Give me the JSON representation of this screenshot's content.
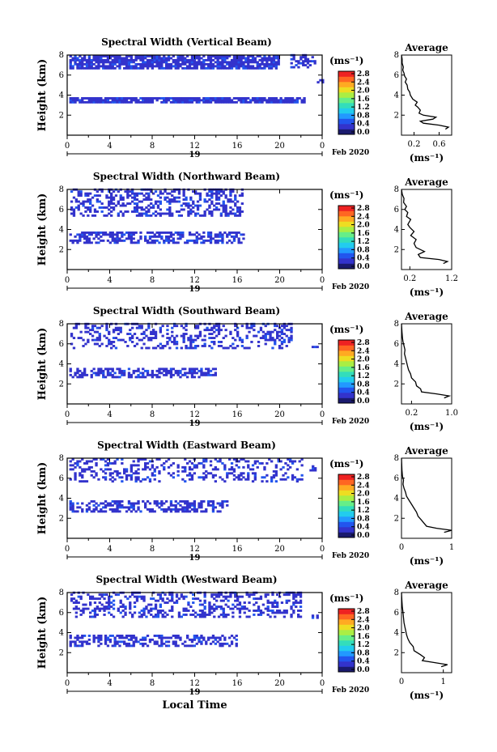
{
  "chart_data": [
    {
      "type": "heatmap",
      "title": "Spectral Width (Vertical Beam)",
      "ylabel": "Height (km)",
      "xlim": [
        0,
        24
      ],
      "ylim": [
        0,
        8
      ],
      "x_ticks": [
        "0",
        "4",
        "8",
        "12",
        "16",
        "20",
        "0"
      ],
      "y_ticks": [
        "2",
        "4",
        "6",
        "8"
      ],
      "date_day": "19",
      "date_month": "Feb 2020",
      "colorbar_unit": "(ms⁻¹)",
      "colorbar_ticks": [
        "0.0",
        "0.4",
        "0.8",
        "1.2",
        "1.6",
        "2.0",
        "2.4",
        "2.8"
      ],
      "average_title": "Average",
      "average_unit": "(ms⁻¹)",
      "average_xlim": [
        0,
        0.8
      ],
      "average_ticks": [
        "0.2",
        "0.6"
      ],
      "average_tick_values": [
        0.2,
        0.6
      ],
      "average_profile": [
        [
          0.7,
          0.6
        ],
        [
          0.75,
          0.8
        ],
        [
          0.6,
          1.0
        ],
        [
          0.35,
          1.2
        ],
        [
          0.3,
          1.4
        ],
        [
          0.5,
          1.6
        ],
        [
          0.55,
          1.8
        ],
        [
          0.35,
          2.0
        ],
        [
          0.28,
          2.2
        ],
        [
          0.3,
          2.5
        ],
        [
          0.26,
          2.8
        ],
        [
          0.22,
          3.0
        ],
        [
          0.25,
          3.3
        ],
        [
          0.18,
          3.6
        ],
        [
          0.14,
          4.0
        ],
        [
          0.13,
          4.3
        ],
        [
          0.1,
          4.6
        ],
        [
          0.09,
          5.0
        ],
        [
          0.06,
          5.3
        ],
        [
          0.08,
          5.6
        ],
        [
          0.05,
          5.9
        ],
        [
          0.04,
          6.2
        ],
        [
          0.02,
          6.5
        ],
        [
          0.03,
          6.8
        ],
        [
          0.01,
          7.2
        ],
        [
          0.01,
          7.6
        ],
        [
          0,
          8
        ]
      ],
      "mask": [
        [
          0.2,
          1.0,
          0.2,
          24,
          0.95
        ],
        [
          0.2,
          1.8,
          1.2,
          23.5,
          0.85
        ],
        [
          0.2,
          3.2,
          3.8,
          22.2,
          0.85
        ],
        [
          0.2,
          6.6,
          8.0,
          20.0,
          0.8
        ],
        [
          21.0,
          6.7,
          8.0,
          23.2,
          0.5
        ],
        [
          23.5,
          5.2,
          5.6,
          24,
          0.6
        ]
      ]
    },
    {
      "type": "heatmap",
      "title": "Spectral Width (Northward Beam)",
      "ylabel": "Height (km)",
      "xlim": [
        0,
        24
      ],
      "ylim": [
        0,
        8
      ],
      "x_ticks": [
        "0",
        "4",
        "8",
        "12",
        "16",
        "20",
        "0"
      ],
      "y_ticks": [
        "2",
        "4",
        "6",
        "8"
      ],
      "date_day": "19",
      "date_month": "Feb 2020",
      "colorbar_unit": "(ms⁻¹)",
      "colorbar_ticks": [
        "0.0",
        "0.4",
        "0.8",
        "1.2",
        "1.6",
        "2.0",
        "2.4",
        "2.8"
      ],
      "average_title": "Average",
      "average_unit": "(ms⁻¹)",
      "average_xlim": [
        0,
        1.2
      ],
      "average_ticks": [
        "0.2",
        "1.2"
      ],
      "average_tick_values": [
        0.2,
        1.2
      ],
      "average_profile": [
        [
          1.0,
          0.6
        ],
        [
          1.1,
          0.8
        ],
        [
          0.9,
          1.0
        ],
        [
          0.45,
          1.2
        ],
        [
          0.4,
          1.5
        ],
        [
          0.55,
          1.8
        ],
        [
          0.35,
          2.2
        ],
        [
          0.3,
          2.6
        ],
        [
          0.35,
          3.0
        ],
        [
          0.22,
          3.4
        ],
        [
          0.3,
          3.8
        ],
        [
          0.2,
          4.2
        ],
        [
          0.15,
          4.5
        ],
        [
          0.22,
          5.0
        ],
        [
          0.12,
          5.3
        ],
        [
          0.15,
          5.7
        ],
        [
          0.08,
          6.0
        ],
        [
          0.12,
          6.3
        ],
        [
          0.05,
          6.7
        ],
        [
          0.06,
          7.1
        ],
        [
          0.02,
          7.5
        ],
        [
          0,
          8
        ]
      ],
      "mask": [
        [
          0.2,
          1.0,
          0.2,
          24,
          0.9
        ],
        [
          0.2,
          2.6,
          3.8,
          16.5,
          0.55
        ],
        [
          0.3,
          5.3,
          8.0,
          16.5,
          0.4
        ],
        [
          23.0,
          5.0,
          5.4,
          23.6,
          0.5
        ]
      ]
    },
    {
      "type": "heatmap",
      "title": "Spectral Width (Southward Beam)",
      "ylabel": "Height (km)",
      "xlim": [
        0,
        24
      ],
      "ylim": [
        0,
        8
      ],
      "x_ticks": [
        "0",
        "4",
        "8",
        "12",
        "16",
        "20",
        "0"
      ],
      "y_ticks": [
        "2",
        "4",
        "6",
        "8"
      ],
      "date_day": "19",
      "date_month": "Feb 2020",
      "colorbar_unit": "(ms⁻¹)",
      "colorbar_ticks": [
        "0.0",
        "0.4",
        "0.8",
        "1.2",
        "1.6",
        "2.0",
        "2.4",
        "2.8"
      ],
      "average_title": "Average",
      "average_unit": "(ms⁻¹)",
      "average_xlim": [
        0,
        1.0
      ],
      "average_ticks": [
        "0.2",
        "1.0"
      ],
      "average_tick_values": [
        0.2,
        1.0
      ],
      "average_profile": [
        [
          0.85,
          0.6
        ],
        [
          0.95,
          0.8
        ],
        [
          0.7,
          1.0
        ],
        [
          0.4,
          1.2
        ],
        [
          0.38,
          1.5
        ],
        [
          0.3,
          1.8
        ],
        [
          0.28,
          2.2
        ],
        [
          0.2,
          2.6
        ],
        [
          0.18,
          3.0
        ],
        [
          0.14,
          3.4
        ],
        [
          0.12,
          3.8
        ],
        [
          0.1,
          4.2
        ],
        [
          0.08,
          4.6
        ],
        [
          0.06,
          5.0
        ],
        [
          0.07,
          5.4
        ],
        [
          0.05,
          5.8
        ],
        [
          0.03,
          6.2
        ],
        [
          0.02,
          6.6
        ],
        [
          0.01,
          7.2
        ],
        [
          0,
          8
        ]
      ],
      "mask": [
        [
          0.2,
          1.0,
          0.2,
          24,
          0.85
        ],
        [
          0.2,
          2.6,
          3.6,
          14.0,
          0.5
        ],
        [
          0.3,
          5.5,
          8.0,
          21.0,
          0.3
        ],
        [
          23.0,
          5.4,
          5.8,
          23.6,
          0.5
        ]
      ]
    },
    {
      "type": "heatmap",
      "title": "Spectral Width (Eastward Beam)",
      "ylabel": "Height (km)",
      "xlim": [
        0,
        24
      ],
      "ylim": [
        0,
        8
      ],
      "x_ticks": [
        "0",
        "4",
        "8",
        "12",
        "16",
        "20",
        "0"
      ],
      "y_ticks": [
        "2",
        "4",
        "6",
        "8"
      ],
      "date_day": "19",
      "date_month": "Feb 2020",
      "colorbar_unit": "(ms⁻¹)",
      "colorbar_ticks": [
        "0.0",
        "0.4",
        "0.8",
        "1.2",
        "1.6",
        "2.0",
        "2.4",
        "2.8"
      ],
      "average_title": "Average",
      "average_unit": "(ms⁻¹)",
      "average_xlim": [
        0,
        1.0
      ],
      "average_ticks": [
        "0",
        "1"
      ],
      "average_tick_values": [
        0,
        1
      ],
      "average_profile": [
        [
          0.85,
          0.6
        ],
        [
          1.0,
          0.8
        ],
        [
          0.7,
          1.0
        ],
        [
          0.5,
          1.2
        ],
        [
          0.45,
          1.5
        ],
        [
          0.4,
          1.8
        ],
        [
          0.33,
          2.2
        ],
        [
          0.3,
          2.6
        ],
        [
          0.25,
          3.0
        ],
        [
          0.2,
          3.4
        ],
        [
          0.15,
          3.8
        ],
        [
          0.1,
          4.2
        ],
        [
          0.08,
          4.6
        ],
        [
          0.05,
          5.0
        ],
        [
          0.03,
          5.4
        ],
        [
          0.04,
          5.8
        ],
        [
          0.02,
          6.2
        ],
        [
          0.01,
          6.8
        ],
        [
          0,
          8
        ]
      ],
      "mask": [
        [
          0.2,
          1.0,
          0.2,
          24,
          0.85
        ],
        [
          0.2,
          2.6,
          3.8,
          15.0,
          0.5
        ],
        [
          0.2,
          5.6,
          8.0,
          22.0,
          0.3
        ],
        [
          22.8,
          6.7,
          7.3,
          23.4,
          0.6
        ]
      ]
    },
    {
      "type": "heatmap",
      "title": "Spectral Width (Westward Beam)",
      "ylabel": "Height (km)",
      "xlabel": "Local Time",
      "xlim": [
        0,
        24
      ],
      "ylim": [
        0,
        8
      ],
      "x_ticks": [
        "0",
        "4",
        "8",
        "12",
        "16",
        "20",
        "0"
      ],
      "y_ticks": [
        "2",
        "4",
        "6",
        "8"
      ],
      "date_day": "19",
      "date_month": "Feb 2020",
      "colorbar_unit": "(ms⁻¹)",
      "colorbar_ticks": [
        "0.0",
        "0.4",
        "0.8",
        "1.2",
        "1.6",
        "2.0",
        "2.4",
        "2.8"
      ],
      "average_title": "Average",
      "average_unit": "(ms⁻¹)",
      "average_xlim": [
        0,
        1.2
      ],
      "average_ticks": [
        "0",
        "1"
      ],
      "average_tick_values": [
        0,
        1
      ],
      "average_profile": [
        [
          0.95,
          0.6
        ],
        [
          1.1,
          0.8
        ],
        [
          0.8,
          1.0
        ],
        [
          0.5,
          1.2
        ],
        [
          0.55,
          1.5
        ],
        [
          0.45,
          1.8
        ],
        [
          0.3,
          2.2
        ],
        [
          0.28,
          2.6
        ],
        [
          0.2,
          3.0
        ],
        [
          0.15,
          3.4
        ],
        [
          0.12,
          3.8
        ],
        [
          0.1,
          4.2
        ],
        [
          0.08,
          4.6
        ],
        [
          0.06,
          5.0
        ],
        [
          0.05,
          5.4
        ],
        [
          0.04,
          5.8
        ],
        [
          0.03,
          6.2
        ],
        [
          0.02,
          6.6
        ],
        [
          0.01,
          7.2
        ],
        [
          0,
          8
        ]
      ],
      "mask": [
        [
          0.2,
          1.0,
          0.2,
          24,
          0.85
        ],
        [
          0.2,
          2.6,
          3.8,
          16.0,
          0.45
        ],
        [
          0.3,
          5.5,
          8.0,
          22.0,
          0.35
        ],
        [
          23.0,
          5.4,
          5.7,
          23.6,
          0.6
        ]
      ]
    }
  ]
}
